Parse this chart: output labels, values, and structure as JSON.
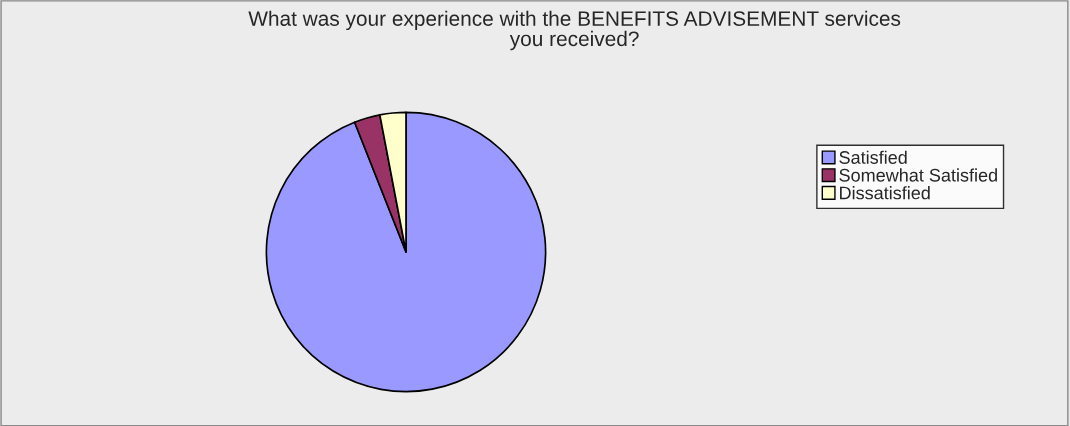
{
  "chart_data": {
    "type": "pie",
    "title": "What was your experience with the BENEFITS ADVISEMENT services\nyou received?",
    "categories": [
      "Satisfied",
      "Somewhat Satisfied",
      "Dissatisfied"
    ],
    "values": [
      94,
      3,
      3
    ],
    "colors": [
      "#9999ff",
      "#993366",
      "#ffffcc"
    ],
    "legend": "right"
  }
}
